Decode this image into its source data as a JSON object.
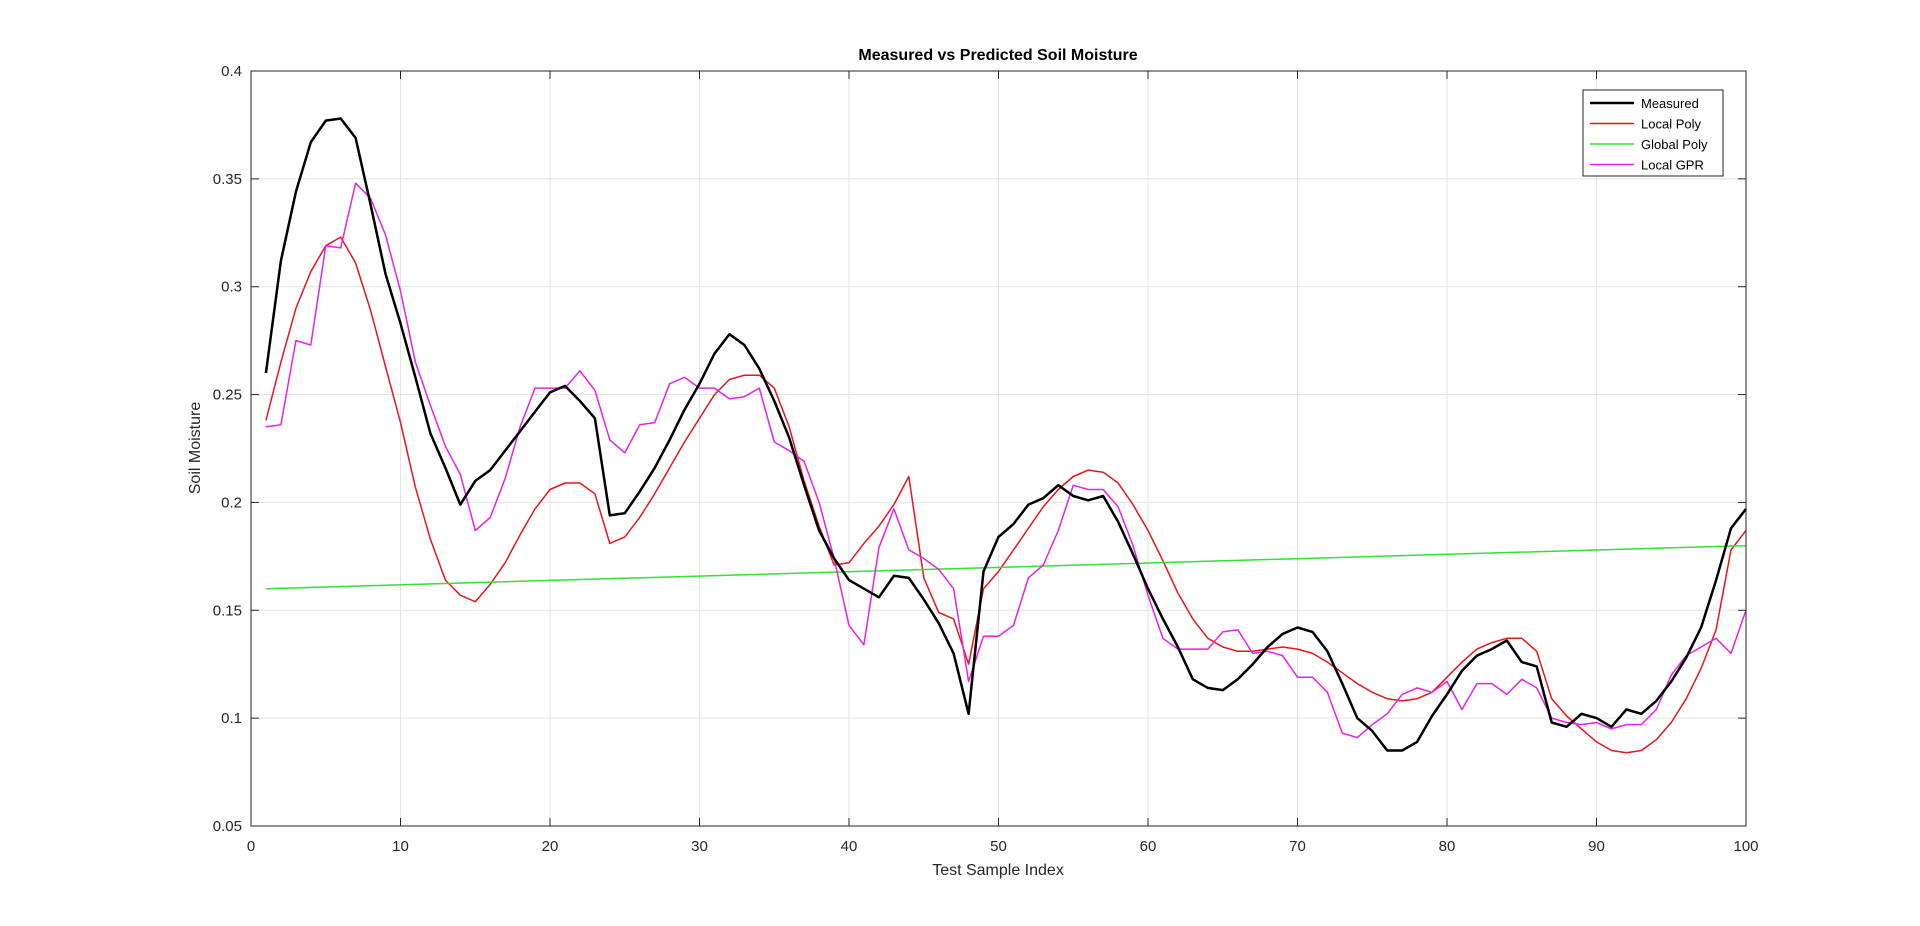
{
  "chart_data": {
    "type": "line",
    "title": "Measured vs Predicted Soil Moisture",
    "xlabel": "Test Sample Index",
    "ylabel": "Soil Moisture",
    "xlim": [
      0,
      100
    ],
    "ylim": [
      0.05,
      0.4
    ],
    "xticks": [
      0,
      10,
      20,
      30,
      40,
      50,
      60,
      70,
      80,
      90,
      100
    ],
    "xtick_labels": [
      "0",
      "10",
      "20",
      "30",
      "40",
      "50",
      "60",
      "70",
      "80",
      "90",
      "100"
    ],
    "yticks": [
      0.05,
      0.1,
      0.15,
      0.2,
      0.25,
      0.3,
      0.35,
      0.4
    ],
    "ytick_labels": [
      "0.05",
      "0.1",
      "0.15",
      "0.2",
      "0.25",
      "0.3",
      "0.35",
      "0.4"
    ],
    "grid": true,
    "legend_position": "top-right",
    "series": [
      {
        "name": "Measured",
        "color": "#000000",
        "x": [
          1,
          2,
          3,
          4,
          5,
          6,
          7,
          8,
          9,
          10,
          11,
          12,
          13,
          14,
          15,
          16,
          17,
          18,
          19,
          20,
          21,
          22,
          23,
          24,
          25,
          26,
          27,
          28,
          29,
          30,
          31,
          32,
          33,
          34,
          35,
          36,
          37,
          38,
          39,
          40,
          41,
          42,
          43,
          44,
          45,
          46,
          47,
          48,
          49,
          50,
          51,
          52,
          53,
          54,
          55,
          56,
          57,
          58,
          59,
          60,
          61,
          62,
          63,
          64,
          65,
          66,
          67,
          68,
          69,
          70,
          71,
          72,
          73,
          74,
          75,
          76,
          77,
          78,
          79,
          80,
          81,
          82,
          83,
          84,
          85,
          86,
          87,
          88,
          89,
          90,
          91,
          92,
          93,
          94,
          95,
          96,
          97,
          98,
          99,
          100
        ],
        "y": [
          0.26,
          0.312,
          0.344,
          0.367,
          0.377,
          0.378,
          0.369,
          0.338,
          0.306,
          0.283,
          0.258,
          0.232,
          0.216,
          0.199,
          0.21,
          0.215,
          0.224,
          0.233,
          0.242,
          0.251,
          0.254,
          0.247,
          0.239,
          0.194,
          0.195,
          0.205,
          0.216,
          0.229,
          0.243,
          0.255,
          0.269,
          0.278,
          0.273,
          0.262,
          0.247,
          0.23,
          0.208,
          0.187,
          0.174,
          0.164,
          0.16,
          0.156,
          0.166,
          0.165,
          0.155,
          0.144,
          0.13,
          0.102,
          0.168,
          0.184,
          0.19,
          0.199,
          0.202,
          0.208,
          0.203,
          0.201,
          0.203,
          0.191,
          0.176,
          0.16,
          0.146,
          0.133,
          0.118,
          0.114,
          0.113,
          0.118,
          0.125,
          0.133,
          0.139,
          0.142,
          0.14,
          0.131,
          0.116,
          0.1,
          0.094,
          0.085,
          0.085,
          0.089,
          0.101,
          0.111,
          0.122,
          0.129,
          0.132,
          0.136,
          0.126,
          0.124,
          0.098,
          0.096,
          0.102,
          0.1,
          0.096,
          0.104,
          0.102,
          0.108,
          0.117,
          0.128,
          0.142,
          0.164,
          0.188,
          0.197
        ]
      },
      {
        "name": "Local Poly",
        "color": "#e8161b",
        "x": [
          1,
          2,
          3,
          4,
          5,
          6,
          7,
          8,
          9,
          10,
          11,
          12,
          13,
          14,
          15,
          16,
          17,
          18,
          19,
          20,
          21,
          22,
          23,
          24,
          25,
          26,
          27,
          28,
          29,
          30,
          31,
          32,
          33,
          34,
          35,
          36,
          37,
          38,
          39,
          40,
          41,
          42,
          43,
          44,
          45,
          46,
          47,
          48,
          49,
          50,
          51,
          52,
          53,
          54,
          55,
          56,
          57,
          58,
          59,
          60,
          61,
          62,
          63,
          64,
          65,
          66,
          67,
          68,
          69,
          70,
          71,
          72,
          73,
          74,
          75,
          76,
          77,
          78,
          79,
          80,
          81,
          82,
          83,
          84,
          85,
          86,
          87,
          88,
          89,
          90,
          91,
          92,
          93,
          94,
          95,
          96,
          97,
          98,
          99,
          100
        ],
        "y": [
          0.238,
          0.265,
          0.29,
          0.307,
          0.319,
          0.323,
          0.311,
          0.289,
          0.263,
          0.237,
          0.207,
          0.183,
          0.164,
          0.157,
          0.154,
          0.162,
          0.172,
          0.185,
          0.197,
          0.206,
          0.209,
          0.209,
          0.204,
          0.181,
          0.184,
          0.193,
          0.204,
          0.216,
          0.228,
          0.239,
          0.25,
          0.257,
          0.259,
          0.259,
          0.253,
          0.235,
          0.21,
          0.189,
          0.171,
          0.172,
          0.181,
          0.189,
          0.199,
          0.212,
          0.165,
          0.149,
          0.146,
          0.125,
          0.16,
          0.168,
          0.178,
          0.188,
          0.198,
          0.206,
          0.212,
          0.215,
          0.214,
          0.209,
          0.199,
          0.187,
          0.173,
          0.158,
          0.146,
          0.137,
          0.133,
          0.131,
          0.131,
          0.132,
          0.133,
          0.132,
          0.13,
          0.126,
          0.121,
          0.116,
          0.112,
          0.109,
          0.108,
          0.109,
          0.112,
          0.119,
          0.126,
          0.132,
          0.135,
          0.137,
          0.137,
          0.131,
          0.109,
          0.101,
          0.095,
          0.089,
          0.085,
          0.084,
          0.085,
          0.09,
          0.098,
          0.109,
          0.123,
          0.141,
          0.178,
          0.187
        ]
      },
      {
        "name": "Global Poly",
        "color": "#36e036",
        "x": [
          1,
          100
        ],
        "y": [
          0.16,
          0.18
        ]
      },
      {
        "name": "Local GPR",
        "color": "#e822e8",
        "x": [
          1,
          2,
          3,
          4,
          5,
          6,
          7,
          8,
          9,
          10,
          11,
          12,
          13,
          14,
          15,
          16,
          17,
          18,
          19,
          20,
          21,
          22,
          23,
          24,
          25,
          26,
          27,
          28,
          29,
          30,
          31,
          32,
          33,
          34,
          35,
          36,
          37,
          38,
          39,
          40,
          41,
          42,
          43,
          44,
          45,
          46,
          47,
          48,
          49,
          50,
          51,
          52,
          53,
          54,
          55,
          56,
          57,
          58,
          59,
          60,
          61,
          62,
          63,
          64,
          65,
          66,
          67,
          68,
          69,
          70,
          71,
          72,
          73,
          74,
          75,
          76,
          77,
          78,
          79,
          80,
          81,
          82,
          83,
          84,
          85,
          86,
          87,
          88,
          89,
          90,
          91,
          92,
          93,
          94,
          95,
          96,
          97,
          98,
          99,
          100
        ],
        "y": [
          0.235,
          0.236,
          0.275,
          0.273,
          0.319,
          0.318,
          0.348,
          0.341,
          0.324,
          0.298,
          0.265,
          0.245,
          0.226,
          0.213,
          0.187,
          0.193,
          0.211,
          0.235,
          0.253,
          0.253,
          0.253,
          0.261,
          0.252,
          0.229,
          0.223,
          0.236,
          0.237,
          0.255,
          0.258,
          0.253,
          0.253,
          0.248,
          0.249,
          0.253,
          0.228,
          0.224,
          0.219,
          0.2,
          0.174,
          0.143,
          0.134,
          0.179,
          0.197,
          0.178,
          0.174,
          0.169,
          0.16,
          0.117,
          0.138,
          0.138,
          0.143,
          0.165,
          0.171,
          0.187,
          0.208,
          0.206,
          0.206,
          0.198,
          0.18,
          0.157,
          0.137,
          0.132,
          0.132,
          0.132,
          0.14,
          0.141,
          0.13,
          0.131,
          0.129,
          0.119,
          0.119,
          0.112,
          0.093,
          0.091,
          0.097,
          0.102,
          0.111,
          0.114,
          0.112,
          0.117,
          0.104,
          0.116,
          0.116,
          0.111,
          0.118,
          0.114,
          0.1,
          0.098,
          0.097,
          0.098,
          0.095,
          0.097,
          0.097,
          0.104,
          0.12,
          0.129,
          0.133,
          0.137,
          0.13,
          0.15
        ]
      }
    ]
  }
}
